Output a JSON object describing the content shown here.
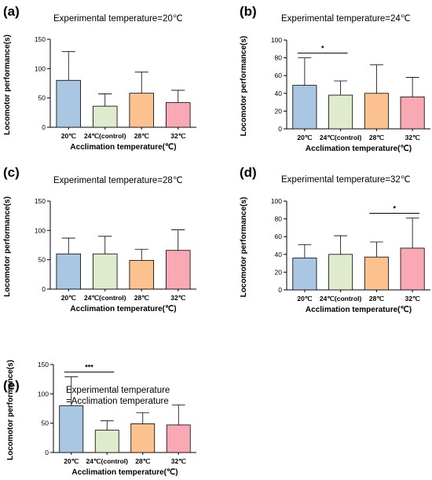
{
  "chart_data": [
    {
      "type": "bar",
      "panel": "(a)",
      "title": "Experimental temperature=20℃",
      "xlabel": "Acclimation temperature(℃)",
      "ylabel": "Locomotor performance(s)",
      "ylim": [
        0,
        150
      ],
      "yticks": [
        0,
        50,
        100,
        150
      ],
      "categories": [
        "20℃",
        "24℃(control)",
        "28℃",
        "32℃"
      ],
      "values": [
        80,
        36,
        58,
        42
      ],
      "errors": [
        49,
        21,
        36,
        21
      ],
      "significance": []
    },
    {
      "type": "bar",
      "panel": "(b)",
      "title": "Experimental temperature=24℃",
      "xlabel": "Acclimation temperature(℃)",
      "ylabel": "Locomotor performance(s)",
      "ylim": [
        0,
        100
      ],
      "yticks": [
        0,
        20,
        40,
        60,
        80,
        100
      ],
      "categories": [
        "20℃",
        "24℃(control)",
        "28℃",
        "32℃"
      ],
      "values": [
        49,
        38,
        40,
        36
      ],
      "errors": [
        31,
        16,
        32,
        22
      ],
      "significance": [
        {
          "from": 0,
          "to": 1,
          "label": "*"
        }
      ]
    },
    {
      "type": "bar",
      "panel": "(c)",
      "title": "Experimental temperature=28℃",
      "xlabel": "Acclimation temperature(℃)",
      "ylabel": "Locomotor performance(s)",
      "ylim": [
        0,
        150
      ],
      "yticks": [
        0,
        50,
        100,
        150
      ],
      "categories": [
        "20℃",
        "24℃(control)",
        "28℃",
        "32℃"
      ],
      "values": [
        60,
        60,
        49,
        66
      ],
      "errors": [
        27,
        30,
        19,
        35
      ],
      "significance": []
    },
    {
      "type": "bar",
      "panel": "(d)",
      "title": "Experimental temperature=32℃",
      "xlabel": "Acclimation temperature(℃)",
      "ylabel": "Locomotor performance(s)",
      "ylim": [
        0,
        100
      ],
      "yticks": [
        0,
        20,
        40,
        60,
        80,
        100
      ],
      "categories": [
        "20℃",
        "24℃(control)",
        "28℃",
        "32℃"
      ],
      "values": [
        36,
        40,
        37,
        47
      ],
      "errors": [
        15,
        21,
        17,
        34
      ],
      "significance": [
        {
          "from": 2,
          "to": 3,
          "label": "*"
        }
      ]
    },
    {
      "type": "bar",
      "panel": "(e)",
      "title": "Experimental temperature\n=Acclimation temperature",
      "xlabel": "Acclimation temperature(℃)",
      "ylabel": "Locomotor performance(s)",
      "ylim": [
        0,
        150
      ],
      "yticks": [
        0,
        50,
        100,
        150
      ],
      "categories": [
        "20℃",
        "24℃(control)",
        "28℃",
        "32℃"
      ],
      "values": [
        80,
        38,
        49,
        47
      ],
      "errors": [
        49,
        16,
        19,
        34
      ],
      "significance": [
        {
          "from": 0,
          "to": 1,
          "label": "***"
        }
      ]
    }
  ],
  "colors": {
    "bars": [
      "#a9c6e2",
      "#e0ebcd",
      "#fbc28f",
      "#f8a9b4"
    ],
    "stroke": "#000000"
  }
}
